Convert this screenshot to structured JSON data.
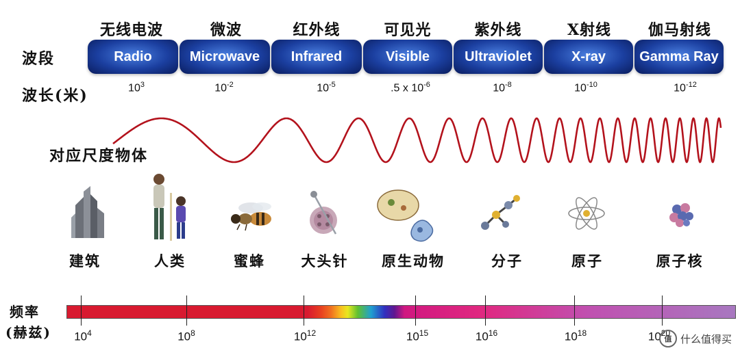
{
  "labels": {
    "band_row": "波段",
    "wavelength_row": "波长(米)",
    "scale_row": "对应尺度物体",
    "freq_row_line1": "频率",
    "freq_row_line2": "(赫兹)"
  },
  "bands": [
    {
      "cn": "无线电波",
      "en": "Radio",
      "wl_base": "10",
      "wl_exp": "3"
    },
    {
      "cn": "微波",
      "en": "Microwave",
      "wl_base": "10",
      "wl_exp": "-2"
    },
    {
      "cn": "红外线",
      "en": "Infrared",
      "wl_base": "10",
      "wl_exp": "-5"
    },
    {
      "cn": "可见光",
      "en": "Visible",
      "wl_base": ".5 x 10",
      "wl_exp": "-6"
    },
    {
      "cn": "紫外线",
      "en": "Ultraviolet",
      "wl_base": "10",
      "wl_exp": "-8"
    },
    {
      "cn": "X射线",
      "en": "X-ray",
      "wl_base": "10",
      "wl_exp": "-10"
    },
    {
      "cn": "伽马射线",
      "en": "Gamma Ray",
      "wl_base": "10",
      "wl_exp": "-12"
    }
  ],
  "objects": [
    {
      "label": "建筑",
      "icon": "building-icon"
    },
    {
      "label": "人类",
      "icon": "humans-icon"
    },
    {
      "label": "蜜蜂",
      "icon": "bee-icon"
    },
    {
      "label": "大头针",
      "icon": "pin-icon"
    },
    {
      "label": "原生动物",
      "icon": "protozoa-icon"
    },
    {
      "label": "分子",
      "icon": "molecule-icon"
    },
    {
      "label": "原子",
      "icon": "atom-icon"
    },
    {
      "label": "原子核",
      "icon": "nucleus-icon"
    }
  ],
  "frequencies": [
    {
      "base": "10",
      "exp": "4"
    },
    {
      "base": "10",
      "exp": "8"
    },
    {
      "base": "10",
      "exp": "12"
    },
    {
      "base": "10",
      "exp": "15"
    },
    {
      "base": "10",
      "exp": "16"
    },
    {
      "base": "10",
      "exp": "18"
    },
    {
      "base": "10",
      "exp": "20"
    }
  ],
  "watermark": {
    "badge": "值",
    "text": "什么值得买"
  },
  "colors": {
    "band_blue": "#1b3fa0",
    "wave": "#b3121c"
  }
}
